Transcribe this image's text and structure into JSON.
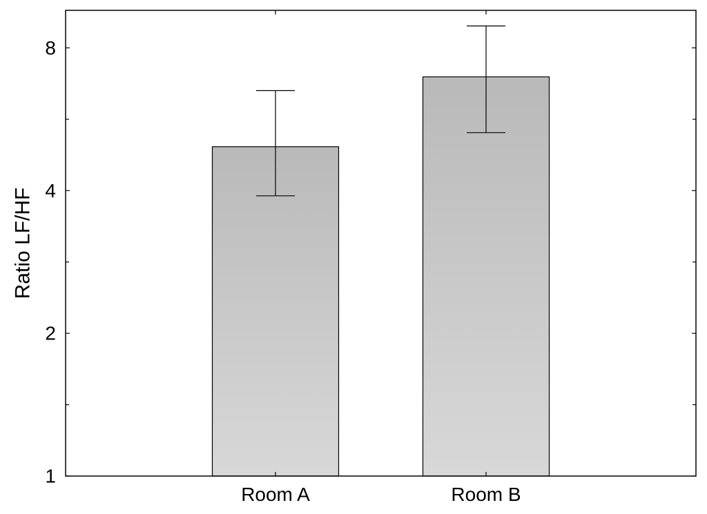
{
  "chart_data": {
    "type": "bar",
    "scale": "log2",
    "categories": [
      "Room A",
      "Room B"
    ],
    "values": [
      4.95,
      6.95
    ],
    "error_low": [
      3.9,
      5.3
    ],
    "error_high": [
      6.5,
      8.9
    ],
    "ylabel": "Ratio LF/HF",
    "ylim": [
      1,
      9.6
    ],
    "yticks": [
      1,
      2,
      4,
      8
    ],
    "ytick_labels": [
      "1",
      "2",
      "4",
      "8"
    ],
    "grid": false,
    "legend": "none",
    "colors": {
      "bar_top": "#b9b9b9",
      "bar_bottom": "#d8d8d8",
      "bar_stroke": "#000000",
      "axis": "#000000"
    }
  }
}
